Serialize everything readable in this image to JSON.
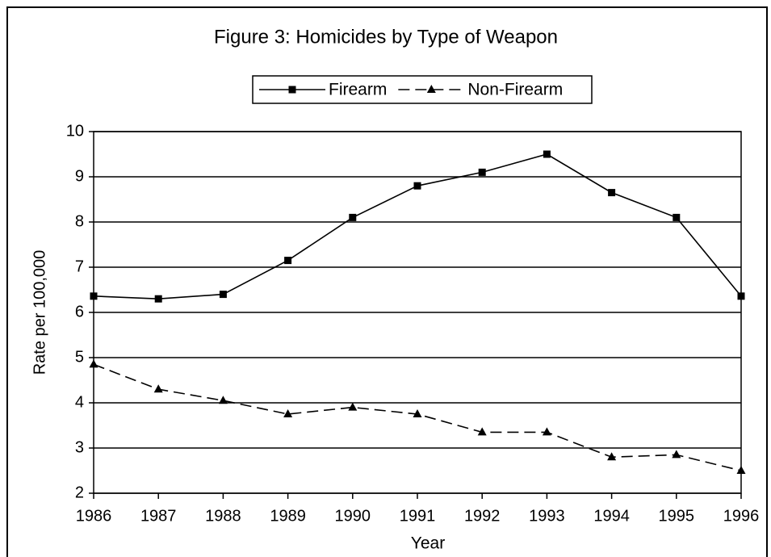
{
  "chart_data": {
    "type": "line",
    "title": "Figure 3:  Homicides by Type of Weapon",
    "x_label": "Year",
    "y_label": "Rate per 100,000",
    "categories": [
      "1986",
      "1987",
      "1988",
      "1989",
      "1990",
      "1991",
      "1992",
      "1993",
      "1994",
      "1995",
      "1996"
    ],
    "series": [
      {
        "name": "Firearm",
        "color": "#000000",
        "marker": "square",
        "dash": false,
        "values": [
          6.36,
          6.3,
          6.4,
          7.15,
          8.1,
          8.8,
          9.1,
          9.5,
          8.65,
          8.1,
          6.36
        ]
      },
      {
        "name": "Non-Firearm",
        "color": "#000000",
        "marker": "triangle",
        "dash": true,
        "values": [
          4.85,
          4.3,
          4.05,
          3.75,
          3.9,
          3.75,
          3.35,
          3.35,
          2.8,
          2.85,
          2.5
        ]
      }
    ],
    "ylim": [
      2,
      10
    ],
    "yticks": [
      2,
      3,
      4,
      5,
      6,
      7,
      8,
      9,
      10
    ],
    "grid": true,
    "legend": "top"
  }
}
